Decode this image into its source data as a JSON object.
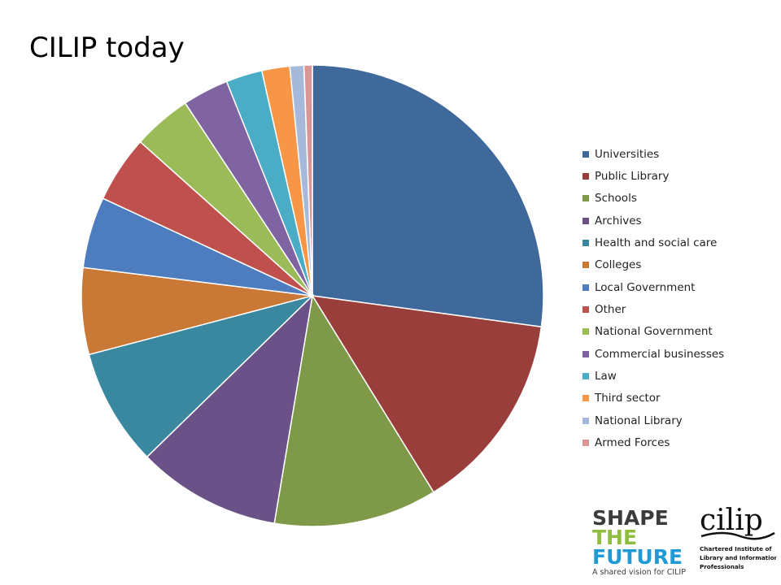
{
  "slide": {
    "title": "CILIP today"
  },
  "chart_data": {
    "type": "pie",
    "title": "",
    "start_angle_deg": 0,
    "direction": "clockwise",
    "legend_position": "right",
    "slices": [
      {
        "label": "Universities",
        "value": 27.8,
        "color": "#3F689B"
      },
      {
        "label": "Public Library",
        "value": 14.4,
        "color": "#9A3E3B"
      },
      {
        "label": "Schools",
        "value": 11.7,
        "color": "#7E9A48"
      },
      {
        "label": "Archives",
        "value": 10.3,
        "color": "#6A5187"
      },
      {
        "label": "Health and social care",
        "value": 8.4,
        "color": "#3A88A0"
      },
      {
        "label": "Colleges",
        "value": 6.2,
        "color": "#CA7836"
      },
      {
        "label": "Local Government",
        "value": 5.1,
        "color": "#4D7DBF"
      },
      {
        "label": "Other",
        "value": 4.8,
        "color": "#C0504D"
      },
      {
        "label": "National Government",
        "value": 4.2,
        "color": "#9BBB59"
      },
      {
        "label": "Commercial businesses",
        "value": 3.3,
        "color": "#8064A2"
      },
      {
        "label": "Law",
        "value": 2.6,
        "color": "#4BACC6"
      },
      {
        "label": "Third sector",
        "value": 2.0,
        "color": "#F79646"
      },
      {
        "label": "National Library",
        "value": 1.0,
        "color": "#A6B9DB"
      },
      {
        "label": "Armed Forces",
        "value": 0.6,
        "color": "#D99694"
      }
    ]
  },
  "logos": {
    "shape_the_future": {
      "line1": "SHAPE",
      "line2": "THE",
      "line3": "FUTURE",
      "tagline": "A shared vision for CILIP",
      "colors": {
        "dark": "#3C3C3B",
        "green": "#8FBE3F",
        "blue": "#1F9AD6",
        "yellow": "#E6B21E"
      }
    },
    "cilip": {
      "name": "cilip",
      "line1": "Chartered Institute of",
      "line2": "Library and Information",
      "line3": "Professionals"
    }
  }
}
